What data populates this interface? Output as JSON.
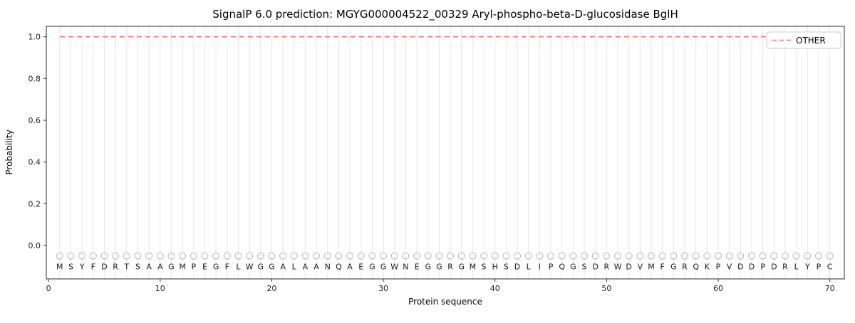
{
  "chart_data": {
    "type": "line",
    "title": "SignalP 6.0 prediction: MGYG000004522_00329 Aryl-phospho-beta-D-glucosidase BglH",
    "xlabel": "Protein sequence",
    "ylabel": "Probability",
    "xticks": [
      0,
      10,
      20,
      30,
      40,
      50,
      60,
      70
    ],
    "yticks": [
      0.0,
      0.2,
      0.4,
      0.6,
      0.8,
      1.0
    ],
    "xlim": [
      -0.2,
      71.3
    ],
    "ylim": [
      -0.16,
      1.05
    ],
    "grid": "vertical line at every residue position, light gray",
    "legend": {
      "position": "upper right",
      "entries": [
        {
          "label": "OTHER",
          "color": "#ff6b6b",
          "linestyle": "dashed"
        }
      ]
    },
    "series": [
      {
        "name": "OTHER",
        "color": "#ff6b6b",
        "linestyle": "dashed",
        "constant_value": 1.0,
        "x_range": [
          1,
          70
        ]
      }
    ],
    "sequence": "MSYFDRTSAAGMPEGFLWGGALAANQAEGGWNEGGRGMSHSDLIPQGSDRWDVMFGRQKPVDDPDRLYPC",
    "residue_marker_y": -0.05,
    "marker_color": "#b5b5b5",
    "letter_color": "#1a1a1a",
    "gridline_color": "#e7e7e7",
    "spine_color": "#2b2b2b"
  }
}
